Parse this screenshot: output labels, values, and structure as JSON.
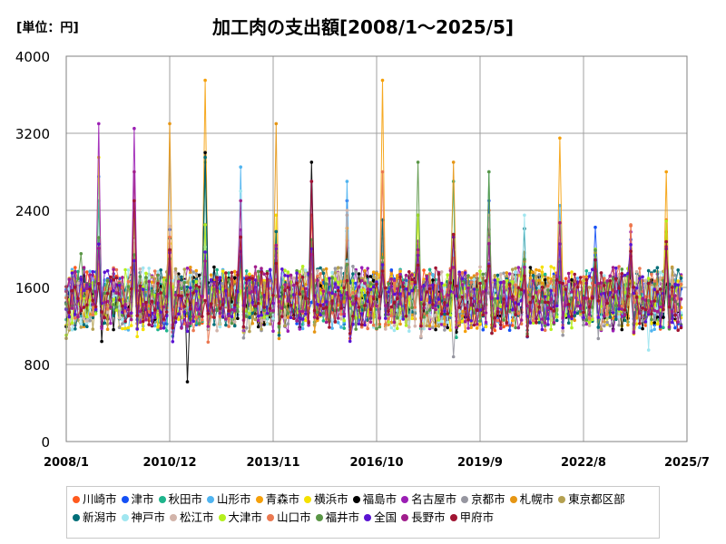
{
  "header": {
    "unit": "[単位：円]",
    "title": "加工肉の支出額[2008/1～2025/5]"
  },
  "chart_data": {
    "type": "line",
    "title": "加工肉の支出額[2008/1～2025/5]",
    "xlabel": "",
    "ylabel": "",
    "ylim": [
      0,
      4000
    ],
    "yticks": [
      0,
      800,
      1600,
      2400,
      3200,
      4000
    ],
    "ytick_labels": [
      "0",
      "800",
      "1600",
      "2400",
      "3200",
      "4000"
    ],
    "xlim": [
      "2008/1",
      "2025/7"
    ],
    "xtick_labels": [
      "2008/1",
      "2010/12",
      "2013/11",
      "2016/10",
      "2019/9",
      "2022/8",
      "2025/7"
    ],
    "grid": true,
    "legend_position": "bottom",
    "note": "",
    "series": [
      {
        "name": "川崎市",
        "color": "#ff5a1e",
        "peaks": [
          [
            "2008/12",
            2100
          ],
          [
            "2014/12",
            2350
          ],
          [
            "2019/12",
            2400
          ],
          [
            "2024/12",
            2300
          ]
        ]
      },
      {
        "name": "津市",
        "color": "#1450f5",
        "peaks": [
          [
            "2010/12",
            2200
          ],
          [
            "2015/12",
            2500
          ],
          [
            "2019/12",
            2500
          ]
        ]
      },
      {
        "name": "秋田市",
        "color": "#1eb48c",
        "peaks": [
          [
            "2008/12",
            2500
          ],
          [
            "2011/12",
            2900
          ],
          [
            "2018/12",
            2700
          ],
          [
            "2019/12",
            2800
          ]
        ]
      },
      {
        "name": "山形市",
        "color": "#50b4f0",
        "peaks": [
          [
            "2008/12",
            2750
          ],
          [
            "2012/12",
            2850
          ],
          [
            "2015/12",
            2700
          ],
          [
            "2021/12",
            2450
          ]
        ]
      },
      {
        "name": "青森市",
        "color": "#f5a00a",
        "peaks": [
          [
            "2011/12",
            3750
          ],
          [
            "2016/12",
            3750
          ],
          [
            "2021/12",
            3150
          ],
          [
            "2024/12",
            2800
          ]
        ]
      },
      {
        "name": "横浜市",
        "color": "#f5e100",
        "peaks": [
          [
            "2008/12",
            2950
          ],
          [
            "2013/12",
            2350
          ],
          [
            "2017/12",
            2350
          ]
        ]
      },
      {
        "name": "福島市",
        "color": "#000000",
        "peaks": [
          [
            "2011/12",
            3000
          ],
          [
            "2014/12",
            2900
          ],
          [
            "2019/12",
            2200
          ]
        ],
        "trough": [
          "2011/6",
          620
        ]
      },
      {
        "name": "名古屋市",
        "color": "#9b1eb4",
        "peaks": [
          [
            "2008/12",
            3300
          ],
          [
            "2009/12",
            3250
          ],
          [
            "2014/12",
            2700
          ]
        ]
      },
      {
        "name": "京都市",
        "color": "#9696a0",
        "peaks": [
          [
            "2009/12",
            2400
          ],
          [
            "2015/12",
            2350
          ]
        ],
        "trough": [
          "2018/12",
          880
        ]
      },
      {
        "name": "札幌市",
        "color": "#e69614",
        "peaks": [
          [
            "2010/12",
            3300
          ],
          [
            "2013/12",
            3300
          ],
          [
            "2018/12",
            2900
          ]
        ]
      },
      {
        "name": "東京都区部",
        "color": "#b4a050",
        "peaks": [
          [
            "2009/12",
            2300
          ],
          [
            "2016/12",
            2300
          ]
        ]
      },
      {
        "name": "新潟市",
        "color": "#006e78",
        "peaks": [
          [
            "2011/12",
            2950
          ],
          [
            "2016/12",
            2300
          ]
        ]
      },
      {
        "name": "神戸市",
        "color": "#a0e6f0",
        "peaks": [
          [
            "2012/12",
            2600
          ],
          [
            "2020/12",
            2350
          ]
        ],
        "trough": [
          "2024/6",
          950
        ]
      },
      {
        "name": "松江市",
        "color": "#d2b4aa",
        "peaks": [
          [
            "2015/12",
            2400
          ],
          [
            "2019/12",
            2350
          ]
        ]
      },
      {
        "name": "大津市",
        "color": "#b4f01e",
        "peaks": [
          [
            "2011/12",
            2250
          ],
          [
            "2017/12",
            2350
          ]
        ]
      },
      {
        "name": "山口市",
        "color": "#eb7850",
        "peaks": [
          [
            "2016/12",
            2800
          ],
          [
            "2023/12",
            2250
          ]
        ]
      },
      {
        "name": "福井市",
        "color": "#5a9646",
        "peaks": [
          [
            "2008/6",
            1950
          ],
          [
            "2017/12",
            2900
          ],
          [
            "2019/12",
            2800
          ]
        ]
      },
      {
        "name": "全国",
        "color": "#5a14d2",
        "peaks": [
          [
            "2008/12",
            2050
          ],
          [
            "2014/12",
            2000
          ],
          [
            "2024/12",
            2000
          ]
        ]
      },
      {
        "name": "長野市",
        "color": "#a01e8c",
        "peaks": [
          [
            "2009/12",
            2800
          ],
          [
            "2012/12",
            2500
          ]
        ]
      },
      {
        "name": "甲府市",
        "color": "#a01432",
        "peaks": [
          [
            "2009/12",
            2500
          ],
          [
            "2014/12",
            2700
          ]
        ]
      }
    ]
  }
}
